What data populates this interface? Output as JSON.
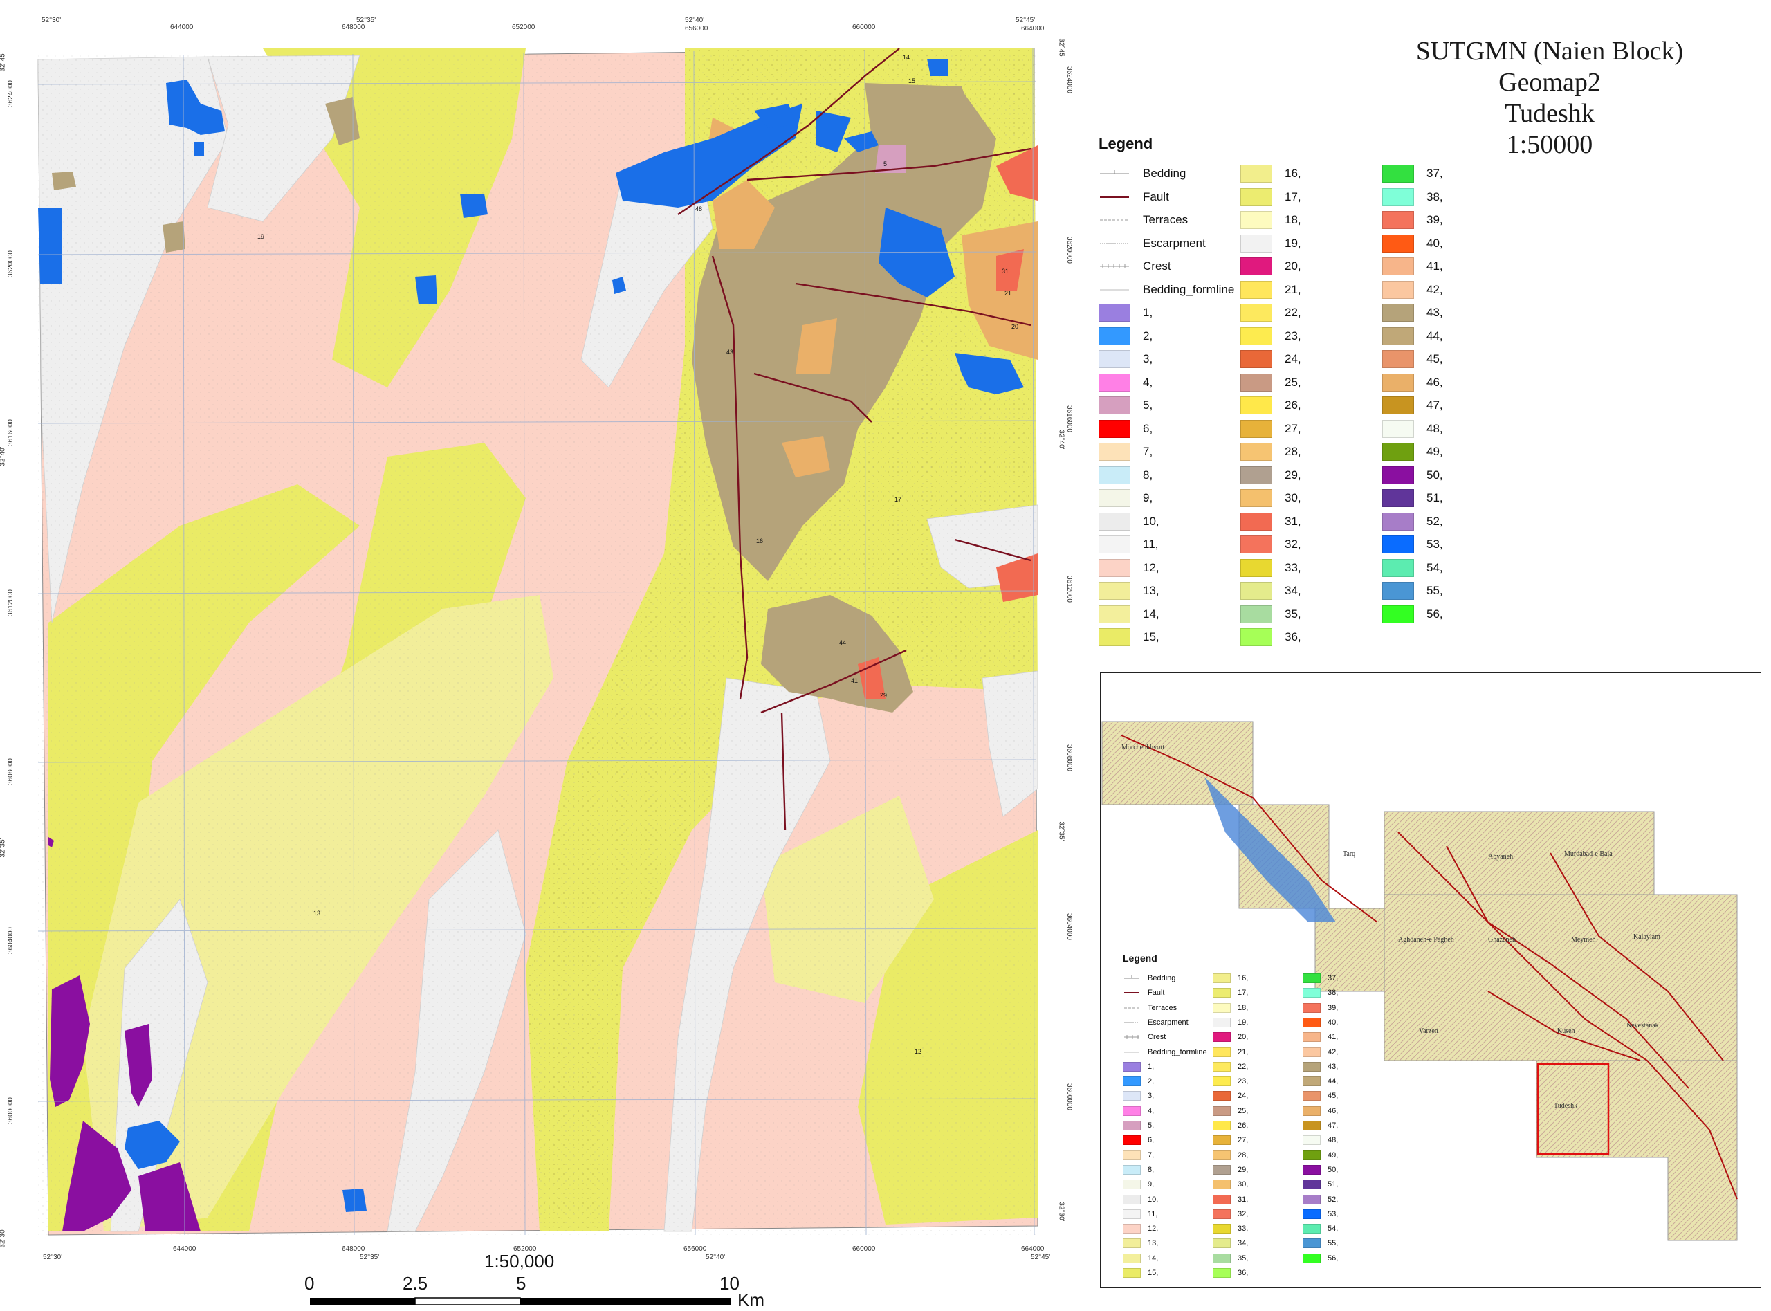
{
  "title": {
    "line1": "SUTGMN (Naien Block)",
    "line2": "Geomap2",
    "line3": "Tudeshk",
    "line4": "1:50000"
  },
  "map": {
    "top_labels": [
      "52°30'",
      "644000",
      "52°35'",
      "648000",
      "652000",
      "52°40'",
      "656000",
      "660000",
      "52°45'",
      "664000"
    ],
    "bottom_labels": [
      "52°30'",
      "644000",
      "648000",
      "52°35'",
      "652000",
      "656000",
      "52°40'",
      "660000",
      "664000",
      "52°45'"
    ],
    "left_labels": [
      "32°45'",
      "3624000",
      "3620000",
      "3616000",
      "32°40'",
      "3612000",
      "3608000",
      "32°35'",
      "3604000",
      "3600000",
      "32°30'"
    ],
    "right_labels": [
      "32°45'",
      "3624000",
      "3620000",
      "3616000",
      "32°40'",
      "3612000",
      "3608000",
      "32°35'",
      "3604000",
      "3600000",
      "32°30'"
    ],
    "unit_labels": [
      "14",
      "15",
      "5",
      "48",
      "19",
      "31",
      "21",
      "20",
      "43",
      "17",
      "16",
      "44",
      "41",
      "29",
      "13",
      "12"
    ],
    "colors": {
      "unit12": "#fcd3c6",
      "unit13": "#f2ee9a",
      "unit15": "#eaeb66",
      "unit19": "#efefef",
      "unit43": "#b5a37a",
      "unit46": "#eab069",
      "unit53": "#1a6fe8",
      "unit50": "#8a0fa0",
      "fault": "#7a1020"
    }
  },
  "scalebar": {
    "ratio": "1:50,000",
    "ticks": [
      "0",
      "2.5",
      "5",
      "10"
    ],
    "unit": "Km"
  },
  "legend": {
    "title": "Legend",
    "line_items": [
      "Bedding",
      "Fault",
      "Terraces",
      "Escarpment",
      "Crest",
      "Bedding_formline"
    ],
    "units": [
      {
        "label": "1,",
        "color": "#9a7fe0"
      },
      {
        "label": "2,",
        "color": "#3399ff"
      },
      {
        "label": "3,",
        "color": "#dde6f7"
      },
      {
        "label": "4,",
        "color": "#ff80e6"
      },
      {
        "label": "5,",
        "color": "#d69fbf"
      },
      {
        "label": "6,",
        "color": "#ff0000"
      },
      {
        "label": "7,",
        "color": "#fde2b8"
      },
      {
        "label": "8,",
        "color": "#c9ecf8"
      },
      {
        "label": "9,",
        "color": "#f4f6e8"
      },
      {
        "label": "10,",
        "color": "#ececec"
      },
      {
        "label": "11,",
        "color": "#f4f4f4"
      },
      {
        "label": "12,",
        "color": "#fcd3c6"
      },
      {
        "label": "13,",
        "color": "#f2ee9a"
      },
      {
        "label": "14,",
        "color": "#f3ef9c"
      },
      {
        "label": "15,",
        "color": "#eaeb66"
      },
      {
        "label": "16,",
        "color": "#f2ee8c"
      },
      {
        "label": "17,",
        "color": "#ecec70"
      },
      {
        "label": "18,",
        "color": "#fdfbbf"
      },
      {
        "label": "19,",
        "color": "#f2f2f2"
      },
      {
        "label": "20,",
        "color": "#e0197e"
      },
      {
        "label": "21,",
        "color": "#ffe65c"
      },
      {
        "label": "22,",
        "color": "#fde95e"
      },
      {
        "label": "23,",
        "color": "#fdeb4f"
      },
      {
        "label": "24,",
        "color": "#e96838"
      },
      {
        "label": "25,",
        "color": "#c99a84"
      },
      {
        "label": "26,",
        "color": "#ffe84a"
      },
      {
        "label": "27,",
        "color": "#e7b23a"
      },
      {
        "label": "28,",
        "color": "#f6c472"
      },
      {
        "label": "29,",
        "color": "#b0a090"
      },
      {
        "label": "30,",
        "color": "#f4c06d"
      },
      {
        "label": "31,",
        "color": "#f26a52"
      },
      {
        "label": "32,",
        "color": "#f4735c"
      },
      {
        "label": "33,",
        "color": "#e8d830"
      },
      {
        "label": "34,",
        "color": "#e4eb8c"
      },
      {
        "label": "35,",
        "color": "#a8dca0"
      },
      {
        "label": "36,",
        "color": "#a6ff57"
      },
      {
        "label": "37,",
        "color": "#33e040"
      },
      {
        "label": "38,",
        "color": "#7fffd8"
      },
      {
        "label": "39,",
        "color": "#f4735c"
      },
      {
        "label": "40,",
        "color": "#ff5a14"
      },
      {
        "label": "41,",
        "color": "#f7b58a"
      },
      {
        "label": "42,",
        "color": "#fbc7a0"
      },
      {
        "label": "43,",
        "color": "#b5a37a"
      },
      {
        "label": "44,",
        "color": "#c0a878"
      },
      {
        "label": "45,",
        "color": "#e9946a"
      },
      {
        "label": "46,",
        "color": "#eab069"
      },
      {
        "label": "47,",
        "color": "#c89420"
      },
      {
        "label": "48,",
        "color": "#f6fbf2"
      },
      {
        "label": "49,",
        "color": "#6fa010"
      },
      {
        "label": "50,",
        "color": "#8a0fa0"
      },
      {
        "label": "51,",
        "color": "#60359a"
      },
      {
        "label": "52,",
        "color": "#a77dc8"
      },
      {
        "label": "53,",
        "color": "#0a6cff"
      },
      {
        "label": "54,",
        "color": "#5cecb0"
      },
      {
        "label": "55,",
        "color": "#4a96d4"
      },
      {
        "label": "56,",
        "color": "#33ff22"
      }
    ]
  },
  "inset": {
    "place_names": [
      "Tarq",
      "Abyaneh",
      "Morchehkhvort",
      "Murdabad-e Bala",
      "Aghdaneh-e Pagheh",
      "Ghazaneh",
      "Meymeh",
      "Kalaylam",
      "Varzen",
      "Neyestanak",
      "Tudeshk",
      "Kuseh"
    ],
    "highlight_color": "#e01010"
  }
}
